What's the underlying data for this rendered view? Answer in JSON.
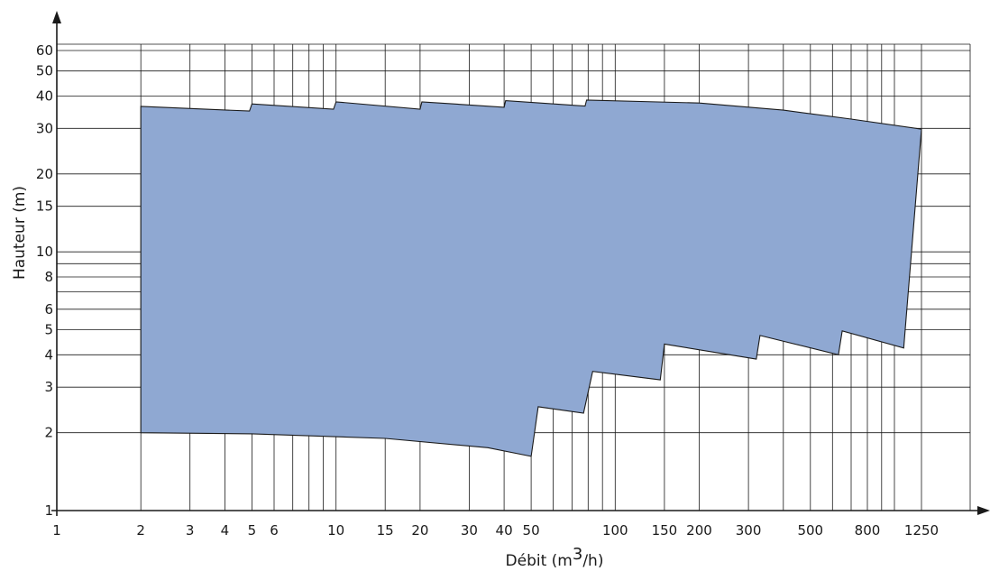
{
  "chart_data": {
    "type": "area",
    "title": "",
    "xlabel": "Débit (m",
    "xlabel_sup": "3",
    "xlabel_tail": "/h)",
    "ylabel": "Hauteur (m)",
    "x_scale": "log",
    "y_scale": "log",
    "xlim": [
      1,
      1250
    ],
    "ylim": [
      1,
      60
    ],
    "grid": true,
    "fill_color": "#8fa8d2",
    "outline_color": "#1a1a1a",
    "grid_color": "#1a1a1a",
    "x_ticks": [
      {
        "value": 1,
        "label": "1"
      },
      {
        "value": 2,
        "label": "2"
      },
      {
        "value": 3,
        "label": "3"
      },
      {
        "value": 4,
        "label": "4"
      },
      {
        "value": 5,
        "label": "5"
      },
      {
        "value": 6,
        "label": "6"
      },
      {
        "value": 10,
        "label": "10"
      },
      {
        "value": 15,
        "label": "15"
      },
      {
        "value": 20,
        "label": "20"
      },
      {
        "value": 30,
        "label": "30"
      },
      {
        "value": 40,
        "label": "40"
      },
      {
        "value": 50,
        "label": "50"
      },
      {
        "value": 100,
        "label": "100"
      },
      {
        "value": 150,
        "label": "150"
      },
      {
        "value": 200,
        "label": "200"
      },
      {
        "value": 300,
        "label": "300"
      },
      {
        "value": 500,
        "label": "500"
      },
      {
        "value": 800,
        "label": "800"
      },
      {
        "value": 1250,
        "label": "1250"
      }
    ],
    "x_grid": [
      2,
      3,
      4,
      5,
      6,
      7,
      8,
      9,
      10,
      15,
      20,
      30,
      40,
      50,
      60,
      70,
      80,
      90,
      100,
      150,
      200,
      300,
      400,
      500,
      600,
      700,
      800,
      900,
      1000,
      1250
    ],
    "y_ticks": [
      {
        "value": 1,
        "label": "1"
      },
      {
        "value": 2,
        "label": "2"
      },
      {
        "value": 3,
        "label": "3"
      },
      {
        "value": 4,
        "label": "4"
      },
      {
        "value": 5,
        "label": "5"
      },
      {
        "value": 6,
        "label": "6"
      },
      {
        "value": 8,
        "label": "8"
      },
      {
        "value": 10,
        "label": "10"
      },
      {
        "value": 15,
        "label": "15"
      },
      {
        "value": 20,
        "label": "20"
      },
      {
        "value": 30,
        "label": "30"
      },
      {
        "value": 40,
        "label": "40"
      },
      {
        "value": 50,
        "label": "50"
      },
      {
        "value": 60,
        "label": "60"
      }
    ],
    "y_grid": [
      2,
      3,
      4,
      5,
      6,
      7,
      8,
      9,
      10,
      15,
      20,
      30,
      40,
      50,
      60
    ],
    "envelope": [
      [
        2,
        36.5
      ],
      [
        4.9,
        35.0
      ],
      [
        5.0,
        37.3
      ],
      [
        9.8,
        35.6
      ],
      [
        10.0,
        38.0
      ],
      [
        20.0,
        35.6
      ],
      [
        20.3,
        38.0
      ],
      [
        40.0,
        36.2
      ],
      [
        40.5,
        38.4
      ],
      [
        78,
        36.6
      ],
      [
        79,
        38.6
      ],
      [
        200,
        37.6
      ],
      [
        400,
        35.3
      ],
      [
        700,
        32.6
      ],
      [
        1250,
        29.8
      ],
      [
        1080,
        4.25
      ],
      [
        650,
        4.95
      ],
      [
        630,
        4.0
      ],
      [
        330,
        4.75
      ],
      [
        320,
        3.85
      ],
      [
        150,
        4.4
      ],
      [
        145,
        3.2
      ],
      [
        83,
        3.45
      ],
      [
        77,
        2.38
      ],
      [
        53,
        2.52
      ],
      [
        50,
        1.62
      ],
      [
        35,
        1.75
      ],
      [
        15,
        1.9
      ],
      [
        5,
        1.98
      ],
      [
        2,
        2.0
      ]
    ]
  }
}
